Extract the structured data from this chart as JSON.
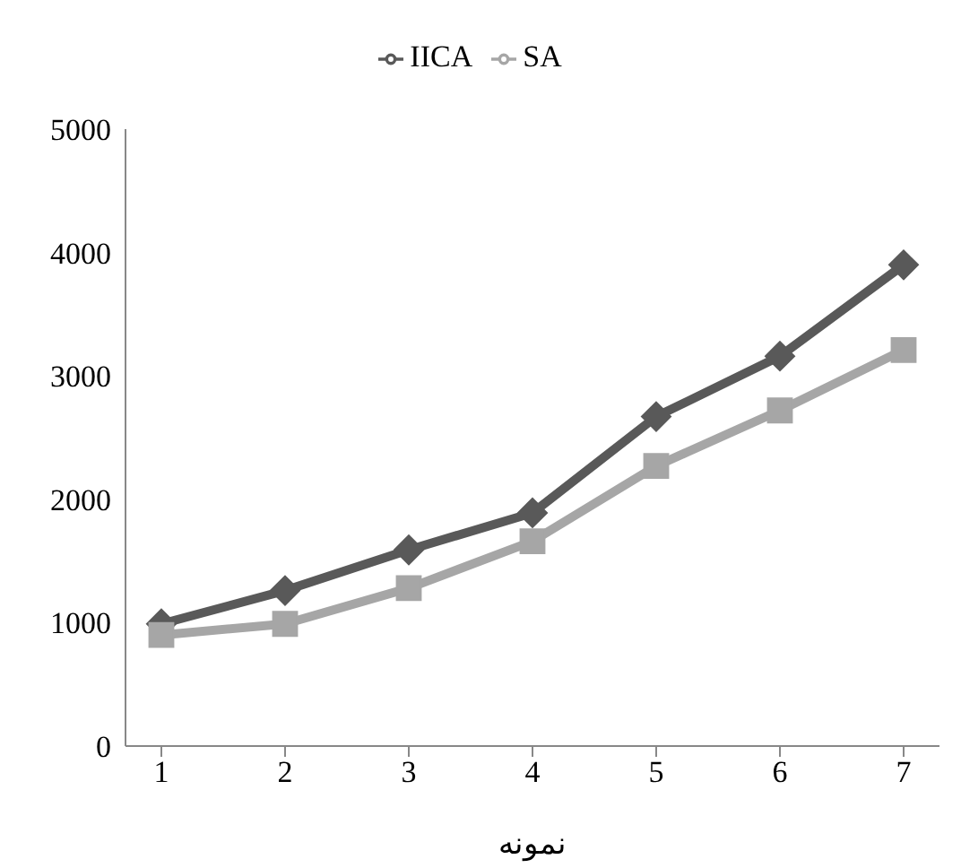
{
  "chart_data": {
    "type": "line",
    "xlabel": "نمونه",
    "categories": [
      "1",
      "2",
      "3",
      "4",
      "5",
      "6",
      "7"
    ],
    "series": [
      {
        "name": "IICA",
        "color": "#595959",
        "marker": "diamond",
        "values": [
          990,
          1260,
          1590,
          1890,
          2670,
          3160,
          3900
        ]
      },
      {
        "name": "SA",
        "color": "#a6a6a6",
        "marker": "square",
        "values": [
          900,
          990,
          1280,
          1660,
          2270,
          2720,
          3210
        ]
      }
    ],
    "ylim": [
      0,
      5000
    ],
    "yticks": [
      0,
      1000,
      2000,
      3000,
      4000,
      5000
    ],
    "grid": false,
    "legend": "top"
  }
}
